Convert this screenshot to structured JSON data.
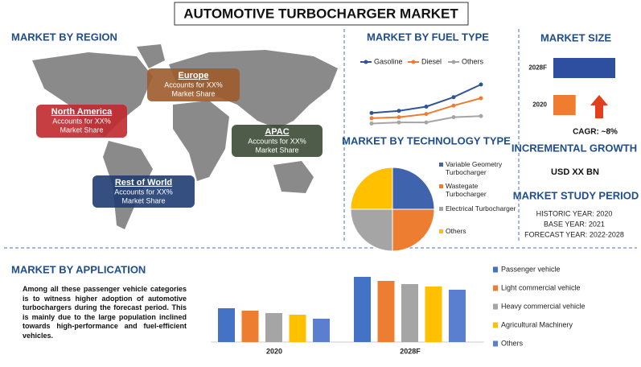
{
  "header": {
    "title": "AUTOMOTIVE TURBOCHARGER MARKET"
  },
  "region": {
    "title": "MARKET BY REGION",
    "boxes": [
      {
        "name": "North America",
        "lines": [
          "Accounts for XX%",
          "Market Share"
        ],
        "color": "#c0282d"
      },
      {
        "name": "Europe",
        "lines": [
          "Accounts for XX%",
          "Market Share"
        ],
        "color": "#9c5b2b"
      },
      {
        "name": "APAC",
        "lines": [
          "Accounts for XX%",
          "Market Share"
        ],
        "color": "#3b4a35"
      },
      {
        "name": "Rest of World",
        "lines": [
          "Accounts for XX%",
          "Market Share"
        ],
        "color": "#1f3c73"
      }
    ]
  },
  "chart_data": [
    {
      "type": "line",
      "title": "MARKET BY FUEL TYPE",
      "categories": [
        null,
        null,
        null,
        null,
        null
      ],
      "series": [
        {
          "name": "Gasoline",
          "color": "#2f5597",
          "values": [
            1.5,
            1.7,
            2.1,
            3.0,
            4.2
          ]
        },
        {
          "name": "Diesel",
          "color": "#ed7d31",
          "values": [
            1.0,
            1.1,
            1.4,
            2.2,
            2.9
          ]
        },
        {
          "name": "Others",
          "color": "#a5a5a5",
          "values": [
            0.5,
            0.6,
            0.6,
            1.1,
            1.2
          ]
        }
      ]
    },
    {
      "type": "pie",
      "title": "MARKET BY TECHNOLOGY TYPE",
      "categories": [
        "Variable Geometry Turbocharger",
        "Wastegate Turbocharger",
        "Electrical Turbocharger",
        "Others"
      ],
      "values": [
        25,
        25,
        25,
        25
      ],
      "colors": [
        "#3f63ad",
        "#ed7d31",
        "#a5a5a5",
        "#ffc000"
      ]
    },
    {
      "type": "hbar",
      "title": "MARKET SIZE",
      "categories": [
        "2028F",
        "2020"
      ],
      "values": [
        100,
        36
      ],
      "colors": [
        "#2e4fa0",
        "#f07c30"
      ],
      "annotation": "CAGR: ~8%"
    },
    {
      "type": "bar",
      "title": "MARKET BY APPLICATION",
      "categories": [
        "2020",
        "2028F"
      ],
      "series": [
        {
          "name": "Passenger vehicle",
          "color": "#4472c4",
          "values": [
            42,
            81
          ]
        },
        {
          "name": "Light commercial vehicle",
          "color": "#ed7d31",
          "values": [
            39,
            76
          ]
        },
        {
          "name": "Heavy commercial vehicle",
          "color": "#a5a5a5",
          "values": [
            36,
            72
          ]
        },
        {
          "name": "Agricultural Machinery",
          "color": "#ffc000",
          "values": [
            34,
            69
          ]
        },
        {
          "name": "Others",
          "color": "#5b7fd0",
          "values": [
            29,
            65
          ]
        }
      ]
    }
  ],
  "growth": {
    "title": "INCREMENTAL GROWTH",
    "value": "USD XX BN"
  },
  "study_period": {
    "title": "MARKET STUDY PERIOD",
    "lines": [
      "HISTORIC YEAR: 2020",
      "BASE YEAR: 2021",
      "FORECAST YEAR: 2022-2028"
    ]
  },
  "application_text": "Among all these passenger vehicle categories is to witness higher adoption of automotive turbochargers during the forecast period. This is mainly due to the large population inclined towards high-performance and fuel-efficient vehicles."
}
